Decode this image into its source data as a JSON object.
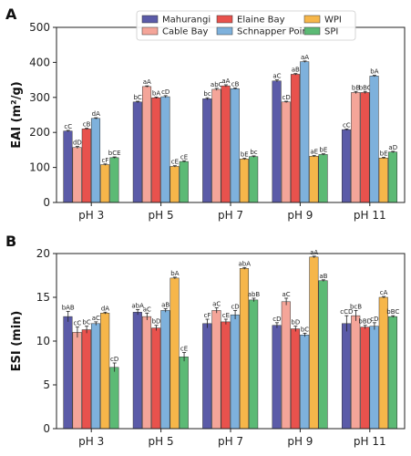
{
  "chart_data": [
    {
      "type": "bar",
      "panel_label": "A",
      "ylabel": "EAI (m²/g)",
      "ylim": [
        0,
        500
      ],
      "yticks": [
        0,
        100,
        200,
        300,
        400,
        500
      ],
      "categories": [
        "pH 3",
        "pH 5",
        "pH 7",
        "pH 9",
        "pH 11"
      ],
      "grid": false,
      "legend": {
        "placement": "top",
        "columns": 3,
        "entries": [
          "Mahurangi",
          "Cable Bay",
          "Elaine Bay",
          "Schnapper Point",
          "WPI",
          "SPI"
        ]
      },
      "series": [
        {
          "name": "Mahurangi",
          "color": "#5b5ba8",
          "values": [
            204,
            287,
            296,
            347,
            208
          ],
          "errors": [
            2,
            2,
            3,
            3,
            2
          ],
          "labels": [
            "cC",
            "bC",
            "bc",
            "aC",
            "cC"
          ]
        },
        {
          "name": "Cable Bay",
          "color": "#f4a599",
          "values": [
            157,
            331,
            323,
            287,
            314
          ],
          "errors": [
            3,
            2,
            3,
            2,
            3
          ],
          "labels": [
            "dD",
            "aA",
            "abC",
            "cD",
            "bB"
          ]
        },
        {
          "name": "Elaine Bay",
          "color": "#e8524d",
          "values": [
            210,
            299,
            333,
            366,
            314
          ],
          "errors": [
            2,
            2,
            3,
            2,
            3
          ],
          "labels": [
            "cB",
            "bA",
            "aA",
            "aB",
            "bBC"
          ]
        },
        {
          "name": "Schnapper Point",
          "color": "#7eb1dc",
          "values": [
            240,
            302,
            325,
            402,
            361
          ],
          "errors": [
            2,
            3,
            2,
            2,
            2
          ],
          "labels": [
            "dA",
            "cD",
            "cB",
            "aA",
            "bA"
          ]
        },
        {
          "name": "WPI",
          "color": "#f6b64a",
          "values": [
            108,
            103,
            124,
            132,
            127
          ],
          "errors": [
            2,
            2,
            2,
            2,
            2
          ],
          "labels": [
            "cF",
            "cE",
            "bE",
            "aE",
            "bE"
          ]
        },
        {
          "name": "SPI",
          "color": "#5cba75",
          "values": [
            128,
            117,
            131,
            137,
            144
          ],
          "errors": [
            2,
            2,
            2,
            2,
            2
          ],
          "labels": [
            "bCE",
            "cE",
            "bc",
            "bE",
            "aD"
          ]
        }
      ]
    },
    {
      "type": "bar",
      "panel_label": "B",
      "ylabel": "ESI (min)",
      "ylim": [
        0,
        20
      ],
      "yticks": [
        0,
        5,
        10,
        15,
        20
      ],
      "categories": [
        "pH 3",
        "pH 5",
        "pH 7",
        "pH 9",
        "pH 11"
      ],
      "grid": false,
      "series": [
        {
          "name": "Mahurangi",
          "color": "#5b5ba8",
          "values": [
            12.8,
            13.3,
            12.0,
            11.8,
            12.0
          ],
          "errors": [
            0.6,
            0.3,
            0.5,
            0.3,
            0.9
          ],
          "labels": [
            "bAB",
            "abA",
            "cF",
            "cD",
            "cCD"
          ]
        },
        {
          "name": "Cable Bay",
          "color": "#f4a599",
          "values": [
            11.0,
            12.8,
            13.5,
            14.5,
            12.9
          ],
          "errors": [
            0.6,
            0.4,
            0.3,
            0.4,
            0.6
          ],
          "labels": [
            "cC",
            "aC",
            "aC",
            "aC",
            "bcB"
          ]
        },
        {
          "name": "Elaine Bay",
          "color": "#e8524d",
          "values": [
            11.3,
            11.5,
            12.2,
            11.4,
            11.6
          ],
          "errors": [
            0.4,
            0.3,
            0.3,
            0.3,
            0.2
          ],
          "labels": [
            "bC",
            "bD",
            "cE",
            "bD",
            "bBD"
          ]
        },
        {
          "name": "Schnapper Point",
          "color": "#7eb1dc",
          "values": [
            12.0,
            13.5,
            13.0,
            10.7,
            11.7
          ],
          "errors": [
            0.2,
            0.2,
            0.5,
            0.2,
            0.4
          ],
          "labels": [
            "aC",
            "aB",
            "cD",
            "bC",
            "cD"
          ]
        },
        {
          "name": "WPI",
          "color": "#f6b64a",
          "values": [
            13.2,
            17.2,
            18.3,
            19.6,
            15.0
          ],
          "errors": [
            0.1,
            0.1,
            0.1,
            0.1,
            0.1
          ],
          "labels": [
            "dA",
            "bA",
            "abA",
            "aA",
            "cA"
          ]
        },
        {
          "name": "SPI",
          "color": "#5cba75",
          "values": [
            7.0,
            8.2,
            14.7,
            16.9,
            12.8
          ],
          "errors": [
            0.5,
            0.5,
            0.2,
            0.1,
            0.1
          ],
          "labels": [
            "cD",
            "cE",
            "abB",
            "aB",
            "bBC"
          ]
        }
      ]
    }
  ]
}
